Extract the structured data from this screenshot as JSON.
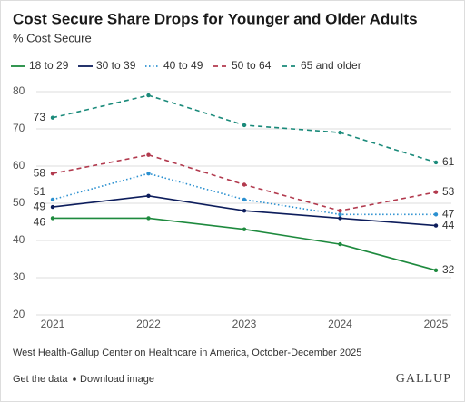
{
  "chart_data": {
    "type": "line",
    "title": "Cost Secure Share Drops for Younger and Older Adults",
    "subtitle": "% Cost Secure",
    "categories": [
      "2021",
      "2022",
      "2023",
      "2024",
      "2025"
    ],
    "series": [
      {
        "name": "18 to 29",
        "color": "#1e8a3e",
        "style": "solid",
        "values": [
          46,
          46,
          43,
          39,
          32
        ]
      },
      {
        "name": "30 to 39",
        "color": "#0d1d5c",
        "style": "solid",
        "values": [
          49,
          52,
          48,
          46,
          44
        ]
      },
      {
        "name": "40 to 49",
        "color": "#2b90d0",
        "style": "dotted",
        "values": [
          51,
          58,
          51,
          47,
          47
        ]
      },
      {
        "name": "50 to 64",
        "color": "#b23a4e",
        "style": "dashed",
        "values": [
          58,
          63,
          55,
          48,
          53
        ]
      },
      {
        "name": "65 and older",
        "color": "#1a8a7a",
        "style": "dashed",
        "values": [
          73,
          79,
          71,
          69,
          61
        ]
      }
    ],
    "ylim": [
      20,
      80
    ],
    "yticks": [
      20,
      30,
      40,
      50,
      60,
      70,
      80
    ],
    "grid": true,
    "source": "West Health-Gallup Center on Healthcare in America, October-December 2025",
    "links": [
      "Get the data",
      "Download image"
    ],
    "brand": "GALLUP"
  }
}
